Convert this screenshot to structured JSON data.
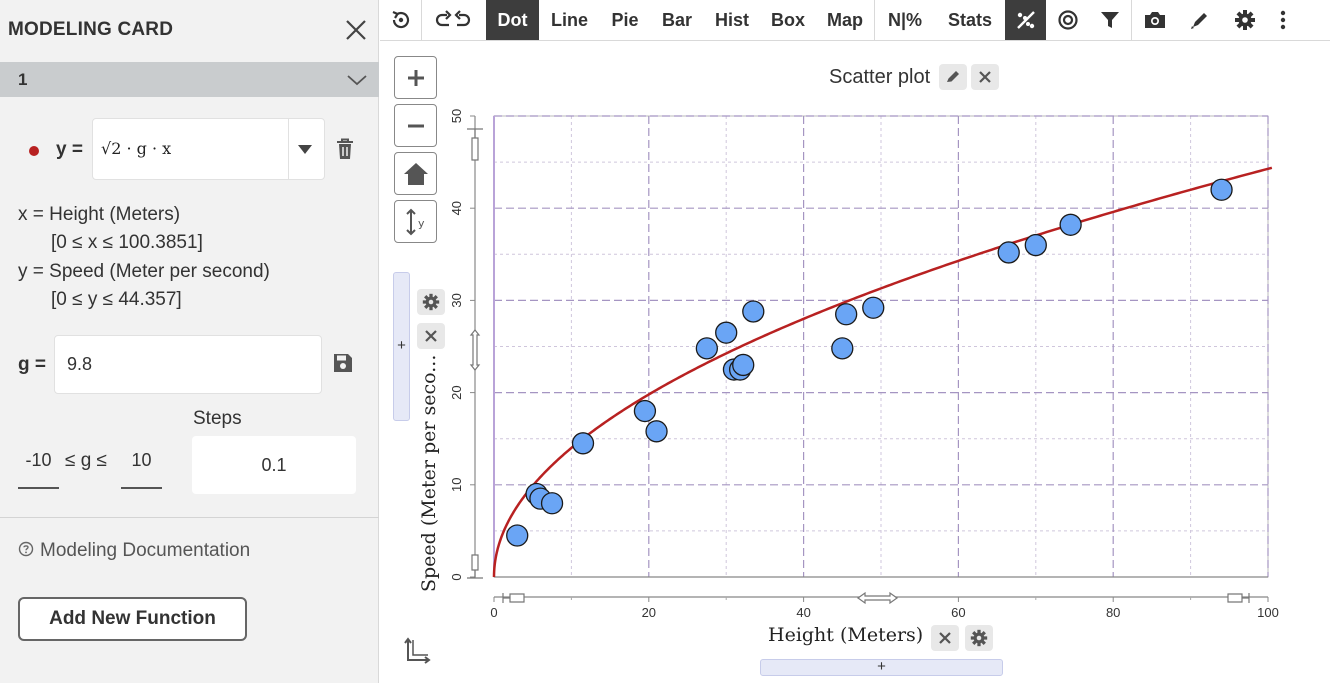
{
  "sidebar": {
    "title": "MODELING CARD",
    "section_label": "1",
    "function": {
      "y_label": "y =",
      "expression": "√2 · g · x",
      "color": "#b82121"
    },
    "x_desc": "x = Height (Meters)",
    "x_range": "[0 ≤ x ≤ 100.3851]",
    "y_desc": "y = Speed (Meter per second)",
    "y_range": "[0 ≤ y ≤ 44.357]",
    "param": {
      "label": "g =",
      "value": "9.8",
      "steps_label": "Steps",
      "min": "-10",
      "range_text": "≤ g ≤",
      "max": "10",
      "steps": "0.1"
    },
    "doc_link": "Modeling Documentation",
    "add_button": "Add New Function"
  },
  "toolbar": {
    "items": [
      "Dot",
      "Line",
      "Pie",
      "Bar",
      "Hist",
      "Box",
      "Map",
      "N|%",
      "Stats"
    ],
    "active": "Dot"
  },
  "plot": {
    "title": "Scatter plot",
    "y_axis_label": "Speed (Meter per seco...",
    "x_axis_label": "Height (Meters)",
    "drop_plus": "+"
  },
  "chart_data": {
    "type": "scatter",
    "title": "Scatter plot",
    "xlabel": "Height (Meters)",
    "ylabel": "Speed (Meter per seco...",
    "xlim": [
      0,
      100
    ],
    "ylim": [
      0,
      50
    ],
    "x_ticks": [
      0,
      20,
      40,
      60,
      80,
      100
    ],
    "y_ticks": [
      0,
      10,
      20,
      30,
      40,
      50
    ],
    "grid": true,
    "point_color": "#6aa5f5",
    "curve_color": "#b82121",
    "curve": "y = sqrt(2 * 9.8 * x)",
    "points": [
      {
        "x": 3,
        "y": 4.5
      },
      {
        "x": 5.5,
        "y": 9
      },
      {
        "x": 6,
        "y": 8.5
      },
      {
        "x": 7.5,
        "y": 8
      },
      {
        "x": 11.5,
        "y": 14.5
      },
      {
        "x": 19.5,
        "y": 18
      },
      {
        "x": 21,
        "y": 15.8
      },
      {
        "x": 27.5,
        "y": 24.8
      },
      {
        "x": 30,
        "y": 26.5
      },
      {
        "x": 31,
        "y": 22.5
      },
      {
        "x": 31.8,
        "y": 22.5
      },
      {
        "x": 32.2,
        "y": 23
      },
      {
        "x": 33.5,
        "y": 28.8
      },
      {
        "x": 45,
        "y": 24.8
      },
      {
        "x": 45.5,
        "y": 28.5
      },
      {
        "x": 49,
        "y": 29.2
      },
      {
        "x": 66.5,
        "y": 35.2
      },
      {
        "x": 70,
        "y": 36
      },
      {
        "x": 74.5,
        "y": 38.2
      },
      {
        "x": 94,
        "y": 42
      }
    ]
  }
}
